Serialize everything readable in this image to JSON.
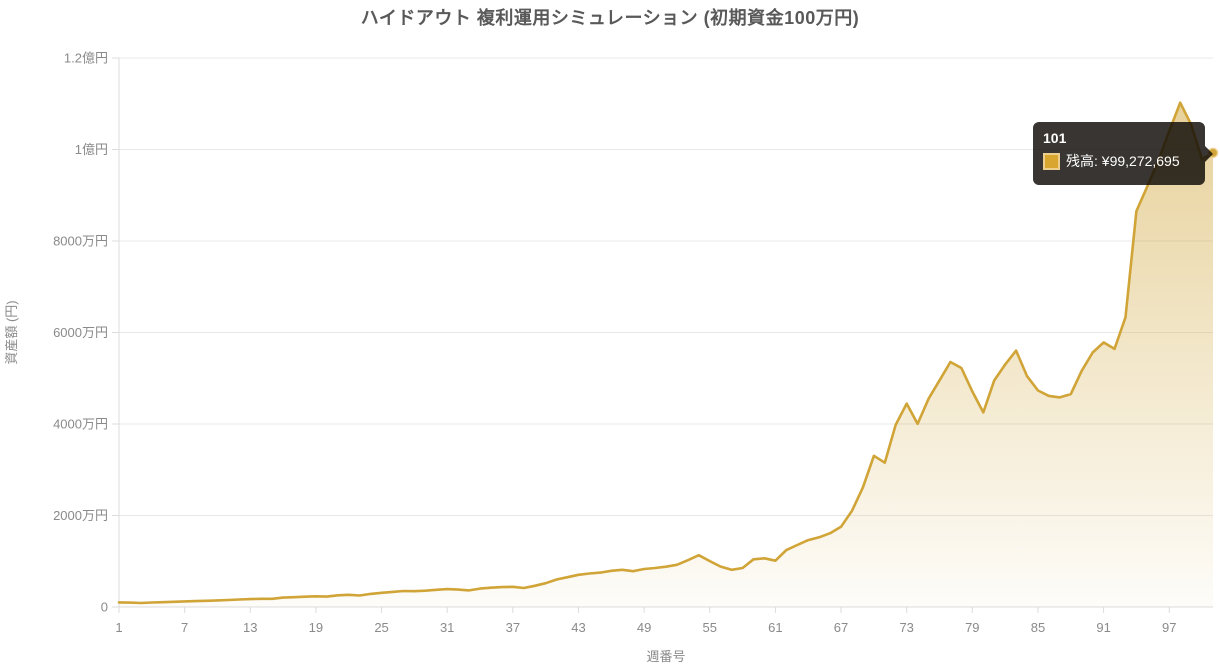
{
  "title": "ハイドアウト 複利運用シミュレーション (初期資金100万円)",
  "tooltip": {
    "title": "101",
    "text": "残高: ¥99,272,695"
  },
  "colors": {
    "line": "#D0A437",
    "fill_top": "rgba(208,164,55,0.50)",
    "fill_bottom": "rgba(208,164,55,0.03)",
    "grid": "#E8E8E8",
    "axis": "#DCDCDC",
    "tick_text": "#8a8a8a",
    "title_text": "#595959",
    "tooltip_bg": "rgba(12,9,5,0.82)",
    "swatch_fill": "#D9A62F",
    "swatch_border": "#EDCE8C"
  },
  "chart_data": {
    "type": "area",
    "title": "ハイドアウト 複利運用シミュレーション (初期資金100万円)",
    "xlabel": "週番号",
    "ylabel": "資産額 (円)",
    "ylim": [
      0,
      120000000
    ],
    "grid": "horizontal-only",
    "legend_position": "none",
    "x_start_week": 1,
    "x_end_week": 101,
    "y_ticks": [
      {
        "label": "0",
        "value": 0
      },
      {
        "label": "2000万円",
        "value": 20000000
      },
      {
        "label": "4000万円",
        "value": 40000000
      },
      {
        "label": "6000万円",
        "value": 60000000
      },
      {
        "label": "8000万円",
        "value": 80000000
      },
      {
        "label": "1億円",
        "value": 100000000
      },
      {
        "label": "1.2億円",
        "value": 120000000
      }
    ],
    "x_ticks": [
      {
        "label": "1",
        "week": 1
      },
      {
        "label": "7",
        "week": 7
      },
      {
        "label": "13",
        "week": 13
      },
      {
        "label": "19",
        "week": 19
      },
      {
        "label": "25",
        "week": 25
      },
      {
        "label": "31",
        "week": 31
      },
      {
        "label": "37",
        "week": 37
      },
      {
        "label": "43",
        "week": 43
      },
      {
        "label": "49",
        "week": 49
      },
      {
        "label": "55",
        "week": 55
      },
      {
        "label": "61",
        "week": 61
      },
      {
        "label": "67",
        "week": 67
      },
      {
        "label": "73",
        "week": 73
      },
      {
        "label": "79",
        "week": 79
      },
      {
        "label": "85",
        "week": 85
      },
      {
        "label": "91",
        "week": 91
      },
      {
        "label": "97",
        "week": 97
      }
    ],
    "series": [
      {
        "name": "残高",
        "values": [
          1000000,
          952000,
          881000,
          976000,
          1058000,
          1132000,
          1214000,
          1287000,
          1356000,
          1438000,
          1524000,
          1633000,
          1731000,
          1802000,
          1784000,
          2057000,
          2148000,
          2256000,
          2331000,
          2284000,
          2552000,
          2663000,
          2521000,
          2858000,
          3112000,
          3308000,
          3506000,
          3462000,
          3557000,
          3758000,
          3912000,
          3814000,
          3628000,
          4013000,
          4208000,
          4357000,
          4421000,
          4156000,
          4624000,
          5213000,
          6018000,
          6524000,
          7031000,
          7324000,
          7512000,
          7908000,
          8123000,
          7836000,
          8312000,
          8527000,
          8814000,
          9231000,
          10238000,
          11327000,
          10034000,
          8841000,
          8139000,
          8534000,
          10418000,
          10642000,
          10123000,
          12432000,
          13547000,
          14618000,
          15236000,
          16142000,
          17523000,
          21038000,
          26134000,
          33057000,
          31542000,
          39816000,
          44462000,
          40031000,
          45523000,
          49536000,
          53558000,
          52237000,
          47118000,
          42534000,
          49512000,
          52987000,
          56042000,
          50463000,
          47328000,
          46137000,
          45816000,
          46528000,
          51637000,
          55624000,
          57826000,
          56412000,
          63318000,
          86542000,
          91987000,
          97456000,
          103987000,
          110234000,
          105478000,
          97812000,
          99272695
        ]
      }
    ],
    "highlight": {
      "week": 101,
      "value": 99272695,
      "tooltip_text": "残高: ¥99,272,695"
    }
  }
}
